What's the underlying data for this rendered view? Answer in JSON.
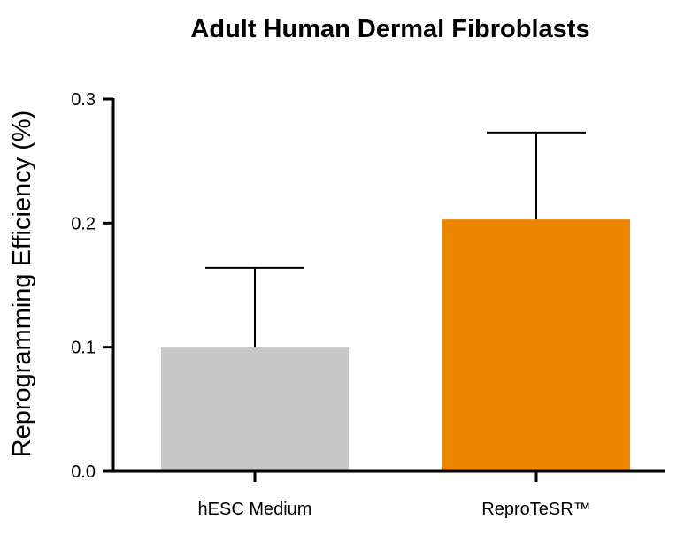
{
  "chart_data": {
    "type": "bar",
    "title": "Adult Human Dermal Fibroblasts",
    "xlabel": "",
    "ylabel": "Reprogramming Efficiency (%)",
    "ylim": [
      0,
      0.3
    ],
    "yticks": [
      "0.0",
      "0.1",
      "0.2",
      "0.3"
    ],
    "categories": [
      "hESC Medium",
      "ReproTeSR™"
    ],
    "values": [
      0.1,
      0.203
    ],
    "error_upper": [
      0.064,
      0.07
    ],
    "bar_colors": [
      "#c8c8c8",
      "#ec8500"
    ],
    "grid": false,
    "legend": "none"
  }
}
